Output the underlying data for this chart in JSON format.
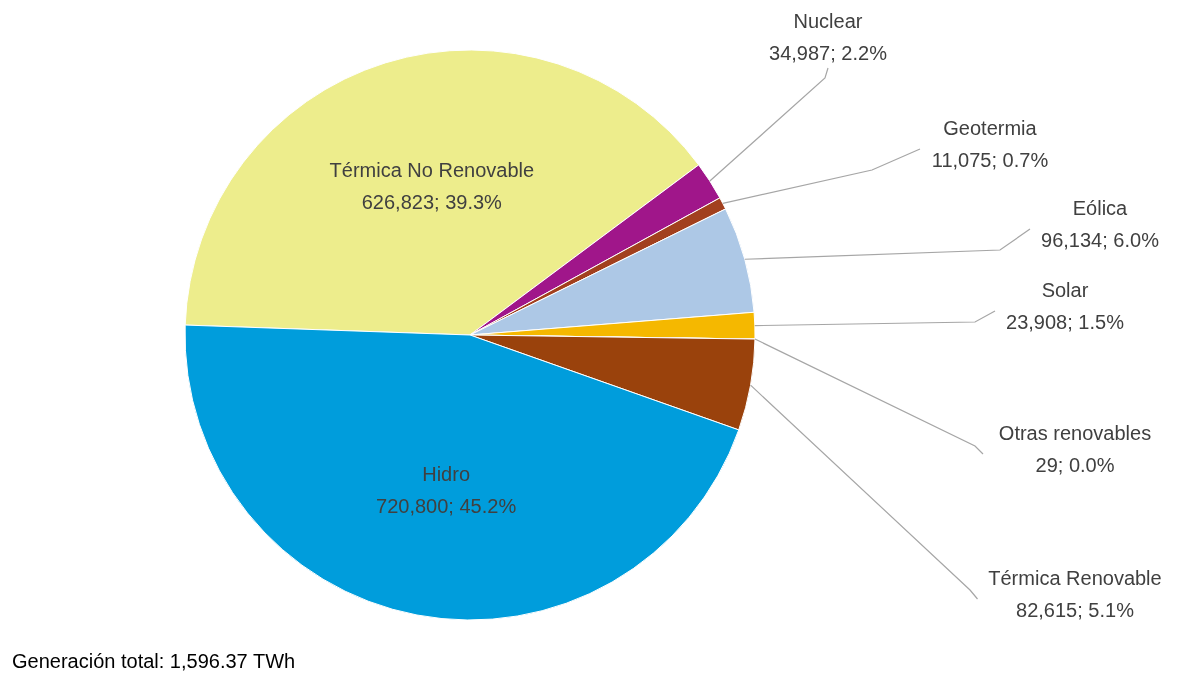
{
  "chart_data": {
    "type": "pie",
    "categories": [
      "Térmica  No Renovable",
      "Nuclear",
      "Geotermia",
      "Eólica",
      "Solar",
      "Otras renovables",
      "Térmica Renovable",
      "Hidro"
    ],
    "values": [
      626823,
      34987,
      11075,
      96134,
      23908,
      29,
      82615,
      720800
    ],
    "colors": [
      "#eded8c",
      "#a0168a",
      "#a2401e",
      "#adc8e6",
      "#f5b800",
      "#7f7f7f",
      "#9a420c",
      "#009ddc"
    ],
    "value_labels": [
      "626,823; 39.3%",
      "34,987; 2.2%",
      "11,075; 0.7%",
      "96,134; 6.0%",
      "23,908; 1.5%",
      "29; 0.0%",
      "82,615; 5.1%",
      "720,800; 45.2%"
    ],
    "annotations": [
      "Generación total: 1,596.37 TWh"
    ]
  }
}
